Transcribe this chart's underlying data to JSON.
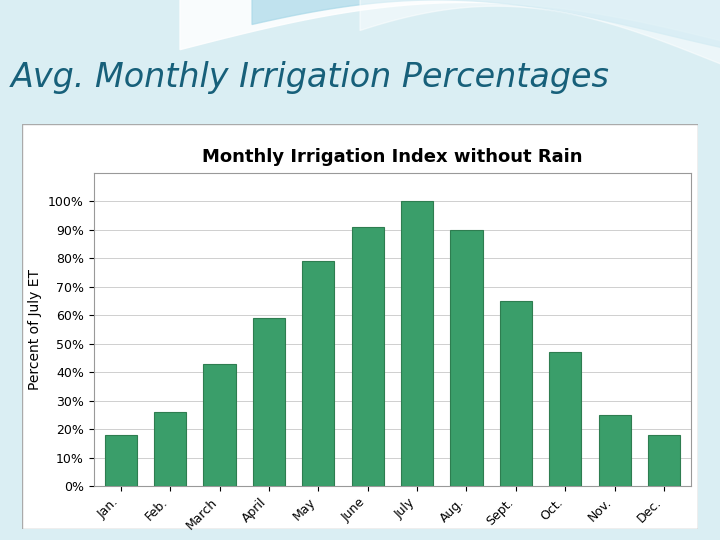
{
  "title": "Monthly Irrigation Index without Rain",
  "super_title": "Avg. Monthly Irrigation Percentages",
  "ylabel": "Percent of July ET",
  "categories": [
    "Jan.",
    "Feb.",
    "March",
    "April",
    "May",
    "June",
    "July",
    "Aug.",
    "Sept.",
    "Oct.",
    "Nov.",
    "Dec."
  ],
  "values": [
    18,
    26,
    43,
    59,
    79,
    91,
    100,
    90,
    65,
    47,
    25,
    18
  ],
  "bar_color": "#3a9e6a",
  "bar_edge_color": "#2e7d50",
  "ylim": [
    0,
    110
  ],
  "yticks": [
    0,
    10,
    20,
    30,
    40,
    50,
    60,
    70,
    80,
    90,
    100
  ],
  "ytick_labels": [
    "0%",
    "10%",
    "20%",
    "30%",
    "40%",
    "50%",
    "60%",
    "70%",
    "80%",
    "90%",
    "100%"
  ],
  "slide_bg_color": "#daeef3",
  "header_bg_color": "#b8dde8",
  "title_color": "#17607a",
  "super_title_fontsize": 24,
  "chart_title_fontsize": 13,
  "ylabel_fontsize": 10,
  "tick_fontsize": 9,
  "grid_color": "#c8c8c8",
  "chart_border_color": "#aaaaaa",
  "wave1_color": "#ffffff",
  "wave2_color": "#7bc8e0"
}
